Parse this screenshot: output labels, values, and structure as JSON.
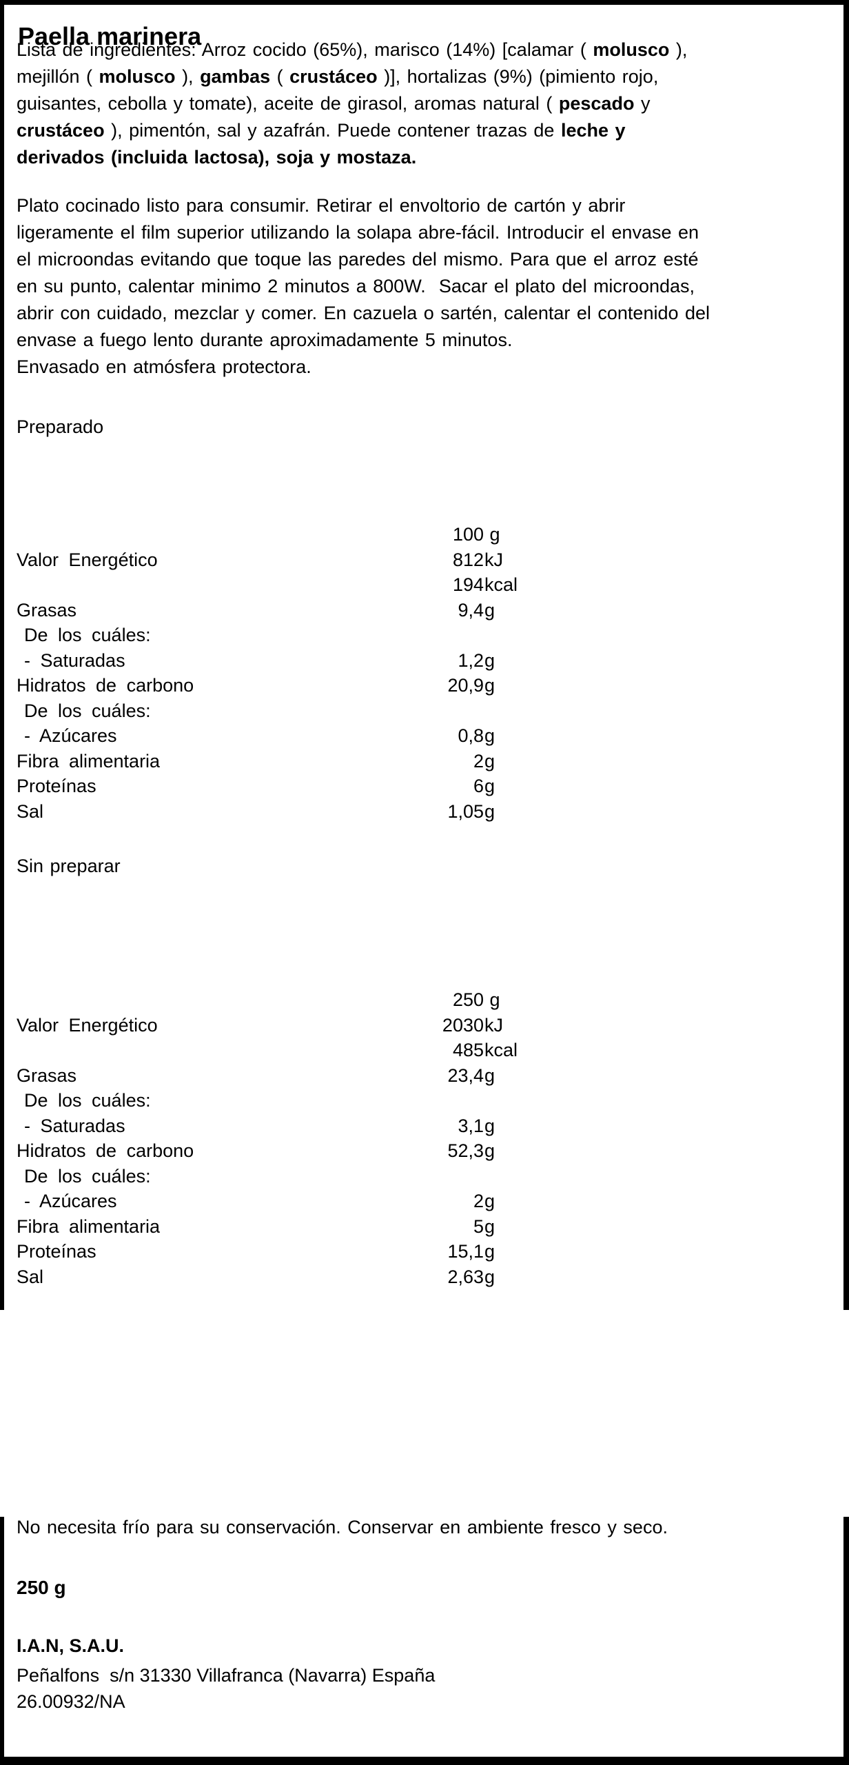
{
  "title": "Paella marinera",
  "ingredients_lines": [
    [
      {
        "t": "Lista de ingredientes: Arroz cocido (65%), marisco (14%) [calamar ( "
      },
      {
        "t": "molusco",
        "b": true
      },
      {
        "t": " ),"
      }
    ],
    [
      {
        "t": "mejillón ( "
      },
      {
        "t": "molusco",
        "b": true
      },
      {
        "t": " ), "
      },
      {
        "t": "gambas",
        "b": true
      },
      {
        "t": " ( "
      },
      {
        "t": "crustáceo",
        "b": true
      },
      {
        "t": " )], hortalizas (9%) (pimiento rojo,"
      }
    ],
    [
      {
        "t": "guisantes, cebolla y tomate), aceite de girasol, aromas natural ( "
      },
      {
        "t": "pescado",
        "b": true
      },
      {
        "t": " y"
      }
    ],
    [
      {
        "t": "crustáceo",
        "b": true
      },
      {
        "t": " ), pimentón, sal y azafrán. Puede contener trazas de "
      },
      {
        "t": "leche y",
        "b": true
      }
    ],
    [
      {
        "t": "derivados (incluida lactosa), soja y mostaza.",
        "b": true
      }
    ]
  ],
  "instructions_lines": [
    "Plato cocinado listo para consumir. Retirar el envoltorio de cartón y abrir",
    "ligeramente el film superior utilizando la solapa abre-fácil. Introducir el envase en",
    "el microondas evitando que toque las paredes del mismo. Para que el arroz esté",
    "en su punto, calentar minimo 2 minutos a 800W.  Sacar el plato del microondas,",
    "abrir con cuidado, mezclar y comer. En cazuela o sartén, calentar el contenido del",
    "envase a fuego lento durante aproximadamente 5 minutos.",
    "Envasado en atmósfera protectora."
  ],
  "prepared": {
    "heading": "Preparado",
    "serving": {
      "num": "100",
      "unit": " g"
    },
    "rows": [
      {
        "label": "Valor Energético",
        "indent": 0,
        "num": "812",
        "unit": "kJ"
      },
      {
        "label": "",
        "indent": 0,
        "num": "194",
        "unit": "kcal"
      },
      {
        "label": "Grasas",
        "indent": 0,
        "num": "9,4",
        "unit": "g"
      },
      {
        "label": "De los cuáles:",
        "indent": 1,
        "num": "",
        "unit": ""
      },
      {
        "label": "- Saturadas",
        "indent": 1,
        "num": "1,2",
        "unit": "g"
      },
      {
        "label": "Hidratos de carbono",
        "indent": 0,
        "num": "20,9",
        "unit": "g"
      },
      {
        "label": "De los cuáles:",
        "indent": 1,
        "num": "",
        "unit": ""
      },
      {
        "label": "- Azúcares",
        "indent": 1,
        "num": "0,8",
        "unit": "g"
      },
      {
        "label": "Fibra alimentaria",
        "indent": 0,
        "num": "2",
        "unit": "g"
      },
      {
        "label": "Proteínas",
        "indent": 0,
        "num": "6",
        "unit": "g"
      },
      {
        "label": "Sal",
        "indent": 0,
        "num": "1,05",
        "unit": "g"
      }
    ]
  },
  "unprepared": {
    "heading": "Sin preparar",
    "serving": {
      "num": "250",
      "unit": " g"
    },
    "rows": [
      {
        "label": "Valor Energético",
        "indent": 0,
        "num": "2030",
        "unit": "kJ"
      },
      {
        "label": "",
        "indent": 0,
        "num": "485",
        "unit": "kcal"
      },
      {
        "label": "Grasas",
        "indent": 0,
        "num": "23,4",
        "unit": "g"
      },
      {
        "label": "De los cuáles:",
        "indent": 1,
        "num": "",
        "unit": ""
      },
      {
        "label": "- Saturadas",
        "indent": 1,
        "num": "3,1",
        "unit": "g"
      },
      {
        "label": "Hidratos de carbono",
        "indent": 0,
        "num": "52,3",
        "unit": "g"
      },
      {
        "label": "De los cuáles:",
        "indent": 1,
        "num": "",
        "unit": ""
      },
      {
        "label": "- Azúcares",
        "indent": 1,
        "num": "2",
        "unit": "g"
      },
      {
        "label": "Fibra alimentaria",
        "indent": 0,
        "num": "5",
        "unit": "g"
      },
      {
        "label": "Proteínas",
        "indent": 0,
        "num": "15,1",
        "unit": "g"
      },
      {
        "label": "Sal",
        "indent": 0,
        "num": "2,63",
        "unit": "g"
      }
    ]
  },
  "storage_note": "No necesita frío para su conservación. Conservar en ambiente fresco y seco.",
  "net_weight": "250 g",
  "manufacturer": "I.A.N, S.A.U.",
  "address": "Peñalfons  s/n 31330 Villafranca (Navarra) España",
  "registration": "26.00932/NA",
  "colors": {
    "text": "#000000",
    "background": "#ffffff",
    "border": "#000000"
  }
}
